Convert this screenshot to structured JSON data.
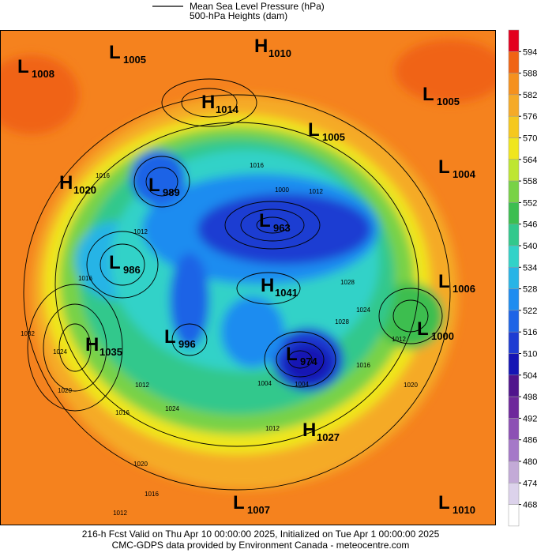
{
  "legend": {
    "line_label": "Mean Sea Level Pressure (hPa)",
    "fill_label": "500-hPa Heights (dam)"
  },
  "colorbar": {
    "levels": [
      594,
      588,
      582,
      576,
      570,
      564,
      558,
      552,
      546,
      540,
      534,
      528,
      522,
      516,
      510,
      504,
      498,
      492,
      486,
      480,
      474,
      468
    ],
    "colors": [
      "#e3001e",
      "#f06414",
      "#f5911e",
      "#f5aa28",
      "#f5c81e",
      "#f0e61e",
      "#bee632",
      "#78d246",
      "#3cbe50",
      "#32c88c",
      "#32d2c8",
      "#28b4e6",
      "#1e8cf0",
      "#1e64e6",
      "#1e3cd2",
      "#1414b4",
      "#50148c",
      "#6e289b",
      "#8c50b4",
      "#a578c8",
      "#c3aad7",
      "#dcd2eb",
      "#ffffff"
    ]
  },
  "centers": [
    {
      "type": "L",
      "value": "1008"
    },
    {
      "type": "L",
      "value": "1005"
    },
    {
      "type": "H",
      "value": "1010"
    },
    {
      "type": "H",
      "value": "1014"
    },
    {
      "type": "L",
      "value": "1005"
    },
    {
      "type": "L",
      "value": "1005"
    },
    {
      "type": "L",
      "value": "1004"
    },
    {
      "type": "H",
      "value": "1020"
    },
    {
      "type": "L",
      "value": "989"
    },
    {
      "type": "L",
      "value": "963"
    },
    {
      "type": "L",
      "value": "986"
    },
    {
      "type": "H",
      "value": "1041"
    },
    {
      "type": "L",
      "value": "1006"
    },
    {
      "type": "L",
      "value": "1000"
    },
    {
      "type": "H",
      "value": "1035"
    },
    {
      "type": "L",
      "value": "996"
    },
    {
      "type": "L",
      "value": "974"
    },
    {
      "type": "H",
      "value": "1027"
    },
    {
      "type": "L",
      "value": "1007"
    },
    {
      "type": "L",
      "value": "1010"
    }
  ],
  "contour_labels": [
    "1016",
    "1012",
    "1016",
    "1000",
    "1012",
    "1028",
    "1024",
    "1020",
    "1032",
    "1028",
    "1024",
    "1016",
    "1012",
    "1004",
    "1004",
    "1012",
    "1016",
    "1024",
    "1020",
    "1016",
    "1012",
    "1012",
    "1016",
    "1020"
  ],
  "footer": {
    "line1": "216-h Fcst Valid on Thu Apr 10 00:00:00 2025, Initialized on Tue Apr  1 00:00:00 2025",
    "line2": "CMC-GDPS data provided by Environment Canada - meteocentre.com"
  }
}
